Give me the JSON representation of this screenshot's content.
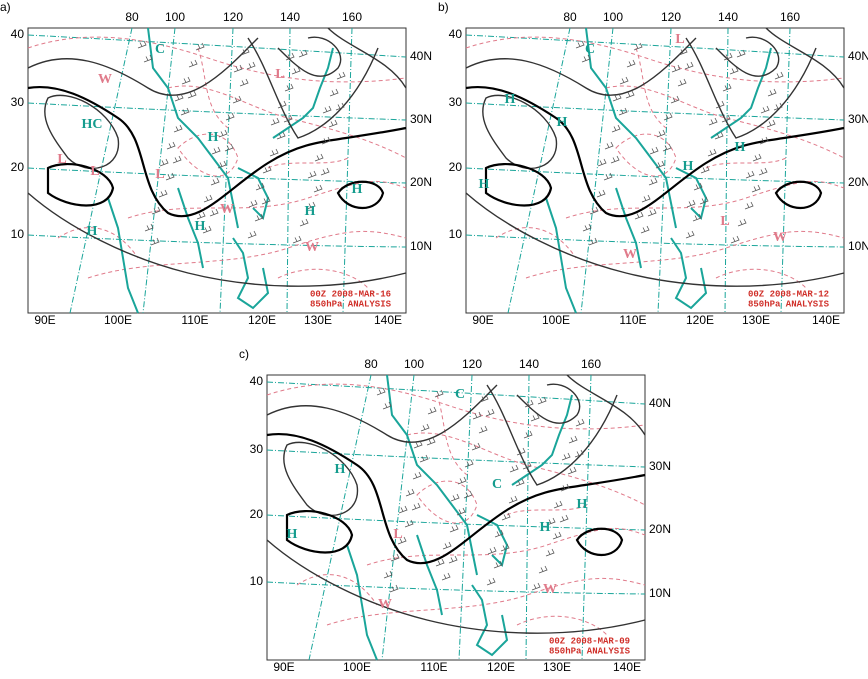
{
  "panels": [
    {
      "label": "a)",
      "top_labels": [
        "80",
        "100",
        "120",
        "140",
        "160"
      ],
      "left_labels": [
        "40",
        "30",
        "20",
        "10"
      ],
      "right_labels": [
        "40N",
        "30N",
        "20N",
        "10N"
      ],
      "bottom_labels": [
        "90E",
        "100E",
        "110E",
        "120E",
        "130E",
        "140E"
      ],
      "stamp": [
        "00Z  2008-MAR-16",
        "850hPa ANALYSIS"
      ],
      "symbols": [
        "HC",
        "L",
        "L",
        "L",
        "H",
        "H",
        "H",
        "H",
        "H",
        "W",
        "W",
        "W",
        "L",
        "C"
      ]
    },
    {
      "label": "b)",
      "top_labels": [
        "80",
        "100",
        "120",
        "140",
        "160"
      ],
      "left_labels": [
        "40",
        "30",
        "20",
        "10"
      ],
      "right_labels": [
        "40N",
        "30N",
        "20N",
        "10N"
      ],
      "bottom_labels": [
        "90E",
        "100E",
        "110E",
        "120E",
        "130E",
        "140E"
      ],
      "stamp": [
        "00Z  2008-MAR-12",
        "850hPa ANALYSIS"
      ],
      "symbols": [
        "H",
        "H",
        "C",
        "L",
        "H",
        "H",
        "H",
        "W",
        "W",
        "L"
      ]
    },
    {
      "label": "c)",
      "top_labels": [
        "80",
        "100",
        "120",
        "140",
        "160"
      ],
      "left_labels": [
        "40",
        "30",
        "20",
        "10"
      ],
      "right_labels": [
        "40N",
        "30N",
        "20N",
        "10N"
      ],
      "bottom_labels": [
        "90E",
        "100E",
        "110E",
        "120E",
        "130E",
        "140E"
      ],
      "stamp": [
        "00Z  2008-MAR-09",
        "850hPa ANALYSIS"
      ],
      "symbols": [
        "H",
        "C",
        "H",
        "H",
        "H",
        "L",
        "C",
        "W",
        "W"
      ]
    }
  ]
}
